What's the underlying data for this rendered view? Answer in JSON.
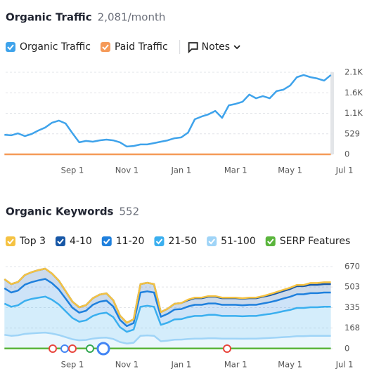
{
  "chart_data": [
    {
      "type": "line",
      "title": "Organic Traffic",
      "subtitle": "2,081/month",
      "notes_button": "Notes",
      "categories": [
        null,
        null,
        null,
        null,
        null,
        null,
        null,
        null,
        null,
        null,
        "Sep 1",
        null,
        null,
        null,
        null,
        null,
        null,
        null,
        "Nov 1",
        null,
        null,
        null,
        null,
        null,
        null,
        null,
        "Jan 1",
        null,
        null,
        null,
        null,
        null,
        null,
        null,
        "Mar 1",
        null,
        null,
        null,
        null,
        null,
        null,
        null,
        "May 1",
        null,
        null,
        null,
        null,
        null,
        null,
        null,
        "Jul 1"
      ],
      "series": [
        {
          "name": "Organic Traffic",
          "color": "#3fa3eb",
          "values": [
            505,
            490,
            540,
            470,
            525,
            615,
            690,
            815,
            870,
            795,
            545,
            310,
            345,
            325,
            360,
            380,
            360,
            310,
            200,
            215,
            255,
            255,
            290,
            325,
            360,
            415,
            435,
            560,
            905,
            975,
            1030,
            1120,
            940,
            1265,
            1300,
            1355,
            1540,
            1445,
            1500,
            1445,
            1630,
            1665,
            1775,
            1990,
            2045,
            1990,
            1955,
            1900,
            2045,
            null,
            null
          ]
        },
        {
          "name": "Paid Traffic",
          "color": "#f59a58",
          "values": [
            0,
            0,
            0,
            0,
            0,
            0,
            0,
            0,
            0,
            0,
            0,
            0,
            0,
            0,
            0,
            0,
            0,
            0,
            0,
            0,
            0,
            0,
            0,
            0,
            0,
            0,
            0,
            0,
            0,
            0,
            0,
            0,
            0,
            0,
            0,
            0,
            0,
            0,
            0,
            0,
            0,
            0,
            0,
            0,
            0,
            0,
            0,
            0,
            0,
            null,
            null
          ]
        }
      ],
      "ylim": [
        0,
        2116
      ],
      "yticks": [
        0,
        529,
        {
          "value": 1058,
          "label": "1.1K"
        },
        {
          "value": 1587,
          "label": "1.6K"
        },
        {
          "value": 2116,
          "label": "2.1K"
        }
      ],
      "grid": true
    },
    {
      "type": "stacked_area",
      "title": "Organic Keywords",
      "subtitle": "552",
      "categories": [
        null,
        null,
        null,
        null,
        null,
        null,
        null,
        null,
        null,
        null,
        "Sep 1",
        null,
        null,
        null,
        null,
        null,
        null,
        null,
        "Nov 1",
        null,
        null,
        null,
        null,
        null,
        null,
        null,
        "Jan 1",
        null,
        null,
        null,
        null,
        null,
        null,
        null,
        "Mar 1",
        null,
        null,
        null,
        null,
        null,
        null,
        null,
        "May 1",
        null,
        null,
        null,
        null,
        null,
        null,
        null,
        "Jul 1"
      ],
      "series": [
        {
          "name": "Top 3",
          "color": "#f5c242",
          "values": [
            0,
            0,
            0,
            0,
            0,
            0,
            0,
            0,
            0,
            0,
            0,
            0,
            0,
            0,
            0,
            0,
            0,
            0,
            0,
            0,
            0,
            0,
            0,
            0,
            0,
            0,
            0,
            5,
            5,
            5,
            5,
            5,
            5,
            5,
            5,
            5,
            5,
            5,
            5,
            10,
            10,
            10,
            10,
            10,
            10,
            15,
            15,
            15,
            15,
            null,
            null
          ]
        },
        {
          "name": "4-10",
          "color": "#1757a6",
          "values": [
            74,
            69,
            70,
            79,
            81,
            84,
            84,
            79,
            72,
            61,
            50,
            44,
            46,
            54,
            58,
            60,
            51,
            35,
            28,
            31,
            69,
            70,
            69,
            38,
            42,
            47,
            49,
            51,
            54,
            54,
            55,
            55,
            54,
            54,
            54,
            53,
            54,
            54,
            55,
            56,
            60,
            61,
            64,
            66,
            66,
            68,
            68,
            69,
            69,
            null,
            null
          ]
        },
        {
          "name": "11-20",
          "color": "#1f80dd",
          "values": [
            125,
            116,
            120,
            132,
            137,
            141,
            144,
            135,
            122,
            103,
            84,
            74,
            78,
            91,
            97,
            99,
            87,
            59,
            47,
            53,
            116,
            118,
            116,
            66,
            72,
            81,
            82,
            87,
            91,
            91,
            93,
            93,
            91,
            91,
            91,
            90,
            91,
            91,
            93,
            96,
            99,
            103,
            107,
            112,
            112,
            115,
            115,
            116,
            116,
            null,
            null
          ]
        },
        {
          "name": "21-50",
          "color": "#3aafef",
          "values": [
            255,
            237,
            245,
            270,
            281,
            288,
            294,
            276,
            250,
            212,
            173,
            152,
            160,
            185,
            198,
            203,
            178,
            121,
            95,
            108,
            237,
            242,
            237,
            134,
            147,
            165,
            167,
            178,
            185,
            185,
            191,
            191,
            185,
            185,
            185,
            183,
            185,
            185,
            191,
            196,
            203,
            212,
            219,
            230,
            230,
            234,
            234,
            237,
            237,
            null,
            null
          ]
        },
        {
          "name": "51-100",
          "color": "#9fd4f7",
          "values": [
            113,
            105,
            109,
            120,
            125,
            128,
            131,
            123,
            111,
            94,
            77,
            68,
            71,
            82,
            88,
            90,
            79,
            54,
            42,
            48,
            105,
            108,
            105,
            60,
            65,
            73,
            74,
            79,
            82,
            82,
            85,
            85,
            82,
            82,
            82,
            81,
            82,
            82,
            85,
            87,
            90,
            94,
            97,
            102,
            102,
            104,
            104,
            105,
            105,
            null,
            null
          ]
        },
        {
          "name": "SERP Features",
          "color": "#5ab53c",
          "type": "line",
          "values": [
            2,
            2,
            2,
            2,
            2,
            2,
            2,
            2,
            2,
            2,
            2,
            2,
            2,
            2,
            2,
            2,
            2,
            2,
            2,
            2,
            2,
            2,
            2,
            2,
            2,
            2,
            2,
            2,
            2,
            2,
            2,
            2,
            2,
            2,
            2,
            2,
            2,
            2,
            2,
            2,
            2,
            2,
            2,
            2,
            2,
            2,
            2,
            2,
            2,
            null,
            null
          ]
        }
      ],
      "ylim": [
        0,
        670
      ],
      "yticks": [
        0,
        168,
        335,
        503,
        670
      ],
      "grid": true
    }
  ]
}
